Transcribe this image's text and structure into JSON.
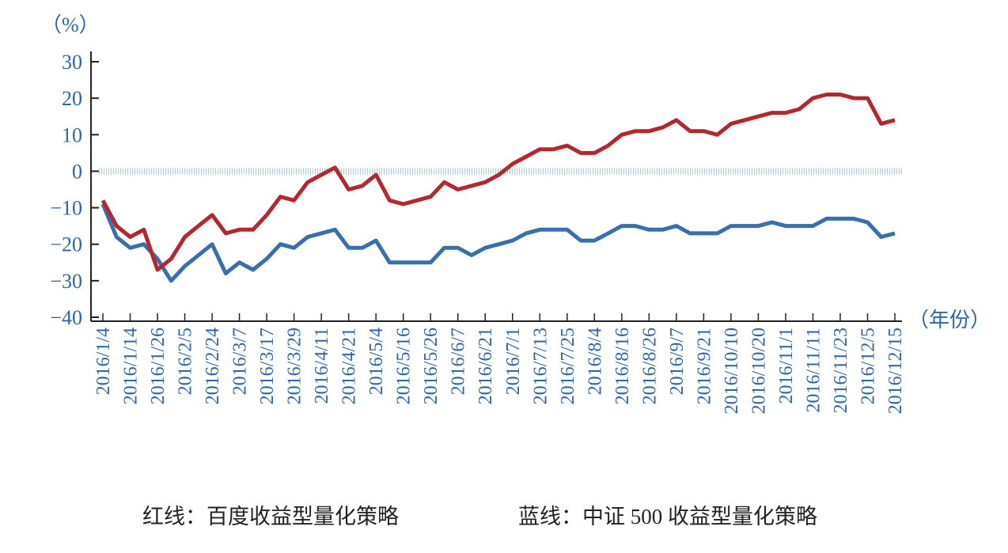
{
  "chart_data": {
    "type": "line",
    "y_label": "（%）",
    "x_label": "（年份）",
    "categories": [
      "2016/1/4",
      null,
      "2016/1/14",
      null,
      "2016/1/26",
      null,
      "2016/2/5",
      null,
      "2016/2/24",
      null,
      "2016/3/7",
      null,
      "2016/3/17",
      null,
      "2016/3/29",
      null,
      "2016/4/11",
      null,
      "2016/4/21",
      null,
      "2016/5/4",
      null,
      "2016/5/16",
      null,
      "2016/5/26",
      null,
      "2016/6/7",
      null,
      "2016/6/21",
      null,
      "2016/7/1",
      null,
      "2016/7/13",
      null,
      "2016/7/25",
      null,
      "2016/8/4",
      null,
      "2016/8/16",
      null,
      "2016/8/26",
      null,
      "2016/9/7",
      null,
      "2016/9/21",
      null,
      "2016/10/10",
      null,
      "2016/10/20",
      null,
      "2016/11/1",
      null,
      "2016/11/11",
      null,
      "2016/11/23",
      null,
      "2016/12/5",
      null,
      "2016/12/15"
    ],
    "series": [
      {
        "name": "红线：百度收益型量化策略",
        "color": "#b3282e",
        "values": [
          -8,
          -15,
          -18,
          -16,
          -27,
          -24,
          -18,
          -15,
          -12,
          -17,
          -16,
          -16,
          -12,
          -7,
          -8,
          -3,
          -1,
          1,
          -5,
          -4,
          -1,
          -8,
          -9,
          -8,
          -7,
          -3,
          -5,
          -4,
          -3,
          -1,
          2,
          4,
          6,
          6,
          7,
          5,
          5,
          7,
          10,
          11,
          11,
          12,
          14,
          11,
          11,
          10,
          13,
          14,
          15,
          16,
          16,
          17,
          20,
          21,
          21,
          20,
          20,
          13,
          14
        ]
      },
      {
        "name": "蓝线：中证 500 收益型量化策略",
        "color": "#3a6eac",
        "values": [
          -9,
          -18,
          -21,
          -20,
          -24,
          -30,
          -26,
          -23,
          -20,
          -28,
          -25,
          -27,
          -24,
          -20,
          -21,
          -18,
          -17,
          -16,
          -21,
          -21,
          -19,
          -25,
          -25,
          -25,
          -25,
          -21,
          -21,
          -23,
          -21,
          -20,
          -19,
          -17,
          -16,
          -16,
          -16,
          -19,
          -19,
          -17,
          -15,
          -15,
          -16,
          -16,
          -15,
          -17,
          -17,
          -17,
          -15,
          -15,
          -15,
          -14,
          -15,
          -15,
          -15,
          -13,
          -13,
          -13,
          -14,
          -18,
          -17
        ]
      }
    ],
    "ylim": [
      -40,
      30
    ],
    "yticks": [
      {
        "value": -40,
        "label": "−40"
      },
      {
        "value": -30,
        "label": "−30"
      },
      {
        "value": -20,
        "label": "−20"
      },
      {
        "value": -10,
        "label": "−10"
      },
      0,
      10,
      20,
      30
    ]
  }
}
